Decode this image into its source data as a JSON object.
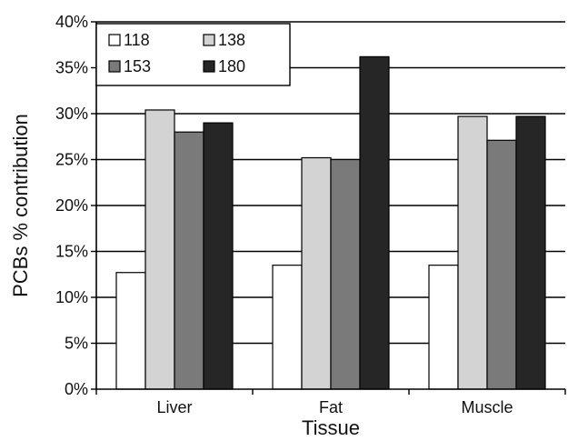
{
  "chart_data": {
    "type": "bar",
    "xlabel": "Tissue",
    "ylabel": "PCBs % contribution",
    "categories": [
      "Liver",
      "Fat",
      "Muscle"
    ],
    "series": [
      {
        "name": "118",
        "values": [
          12.7,
          13.5,
          13.5
        ],
        "color": "#ffffff"
      },
      {
        "name": "138",
        "values": [
          30.4,
          25.2,
          29.7
        ],
        "color": "#d3d3d3"
      },
      {
        "name": "153",
        "values": [
          28.0,
          25.0,
          27.1
        ],
        "color": "#7a7a7a"
      },
      {
        "name": "180",
        "values": [
          29.0,
          36.2,
          29.7
        ],
        "color": "#262626"
      }
    ],
    "ylim": [
      0,
      40
    ],
    "yticks": [
      0,
      5,
      10,
      15,
      20,
      25,
      30,
      35,
      40
    ],
    "ytick_labels": [
      "0%",
      "5%",
      "10%",
      "15%",
      "20%",
      "25%",
      "30%",
      "35%",
      "40%"
    ],
    "grid": "horizontal major lines",
    "legend_position": "top-left"
  }
}
